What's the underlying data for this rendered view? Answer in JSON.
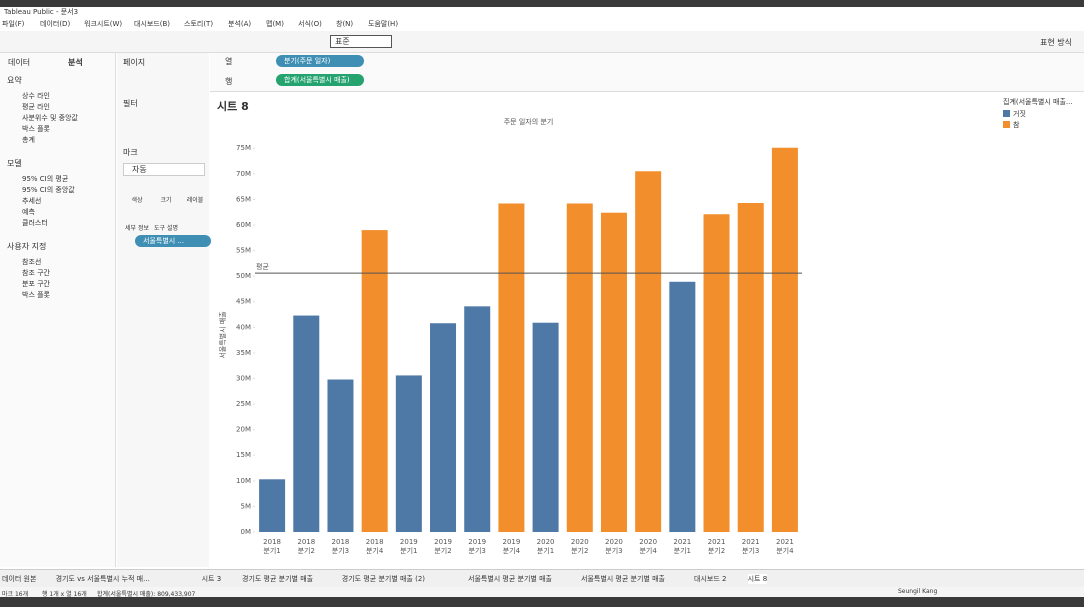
{
  "window_title": "Tableau Public - 문서3",
  "menu": [
    "파일(F)",
    "데이터(D)",
    "워크시트(W)",
    "대시보드(B)",
    "스토리(T)",
    "분석(A)",
    "맵(M)",
    "서식(O)",
    "창(N)",
    "도움말(H)"
  ],
  "toolbar": {
    "fit": "표준",
    "show_me": "표현 방식"
  },
  "side_tabs": [
    "데이터",
    "분석"
  ],
  "analytics": [
    {
      "heading": "요약",
      "items": [
        "상수 라인",
        "평균 라인",
        "사분위수 및 중앙값",
        "박스 플롯",
        "총계"
      ]
    },
    {
      "heading": "모델",
      "items": [
        "95% CI의 평균",
        "95% CI의 중앙값",
        "추세선",
        "예측",
        "클러스터"
      ]
    },
    {
      "heading": "사용자 지정",
      "items": [
        "참조선",
        "참조 구간",
        "분포 구간",
        "박스 플롯"
      ]
    }
  ],
  "cards": {
    "pages": "페이지",
    "filters": "필터",
    "marks": "마크",
    "mark_type": "자동",
    "mark_buttons": [
      "색상",
      "크기",
      "레이블",
      "세부 정보",
      "도구 설명"
    ],
    "color_pill": "서울특별시 ..."
  },
  "shelves": {
    "columns_label": "열",
    "columns_pill": "분기(주문 일자)",
    "rows_label": "행",
    "rows_pill": "합계(서울특별시 매출)"
  },
  "sheet_title": "시트 8",
  "tabs": [
    "데이터 원본",
    "경기도 vs 서울특별시 누적 매...",
    "시트 3",
    "경기도 평균 분기별 매출",
    "경기도 평균 분기별 매출 (2)",
    "서울특별시 평균 분기별 매출",
    "서울특별시 평균 분기별 매출",
    "대시보드 2",
    "시트 8"
  ],
  "status": [
    "마크 16개",
    "행 1개 x 열 16개",
    "합계(서울특별시 매출): 809,433,907"
  ],
  "user": "Seungil Kang",
  "chart_data": {
    "type": "bar",
    "title": "주문 일자의 분기",
    "y_label": "서울특별시 매출",
    "legend_title": "집계(서울특별시 매출...",
    "categories": [
      [
        "2018",
        "분기1"
      ],
      [
        "2018",
        "분기2"
      ],
      [
        "2018",
        "분기3"
      ],
      [
        "2018",
        "분기4"
      ],
      [
        "2019",
        "분기1"
      ],
      [
        "2019",
        "분기2"
      ],
      [
        "2019",
        "분기3"
      ],
      [
        "2019",
        "분기4"
      ],
      [
        "2020",
        "분기1"
      ],
      [
        "2020",
        "분기2"
      ],
      [
        "2020",
        "분기3"
      ],
      [
        "2020",
        "분기4"
      ],
      [
        "2021",
        "분기1"
      ],
      [
        "2021",
        "분기2"
      ],
      [
        "2021",
        "분기3"
      ],
      [
        "2021",
        "분기4"
      ]
    ],
    "series": [
      {
        "name": "거짓",
        "color": "#4e79a7",
        "values": [
          10.3,
          42.3,
          29.8,
          null,
          30.6,
          40.8,
          44.1,
          null,
          40.9,
          null,
          null,
          null,
          48.9,
          null,
          null,
          null
        ]
      },
      {
        "name": "참",
        "color": "#f28e2b",
        "values": [
          null,
          null,
          null,
          59,
          null,
          null,
          null,
          64.2,
          null,
          64.2,
          62.4,
          70.5,
          null,
          62.1,
          64.3,
          75.1
        ]
      }
    ],
    "reference_line": {
      "label": "평균",
      "value": 50.59
    },
    "ylim": [
      0,
      77
    ],
    "yticks": [
      {
        "value": 0,
        "label": "0M"
      },
      {
        "value": 5,
        "label": "5M"
      },
      {
        "value": 10,
        "label": "10M"
      },
      {
        "value": 15,
        "label": "15M"
      },
      {
        "value": 20,
        "label": "20M"
      },
      {
        "value": 25,
        "label": "25M"
      },
      {
        "value": 30,
        "label": "30M"
      },
      {
        "value": 35,
        "label": "35M"
      },
      {
        "value": 40,
        "label": "40M"
      },
      {
        "value": 45,
        "label": "45M"
      },
      {
        "value": 50,
        "label": "50M"
      },
      {
        "value": 55,
        "label": "55M"
      },
      {
        "value": 60,
        "label": "60M"
      },
      {
        "value": 65,
        "label": "65M"
      },
      {
        "value": 70,
        "label": "70M"
      },
      {
        "value": 75,
        "label": "75M"
      }
    ],
    "grid": false
  }
}
